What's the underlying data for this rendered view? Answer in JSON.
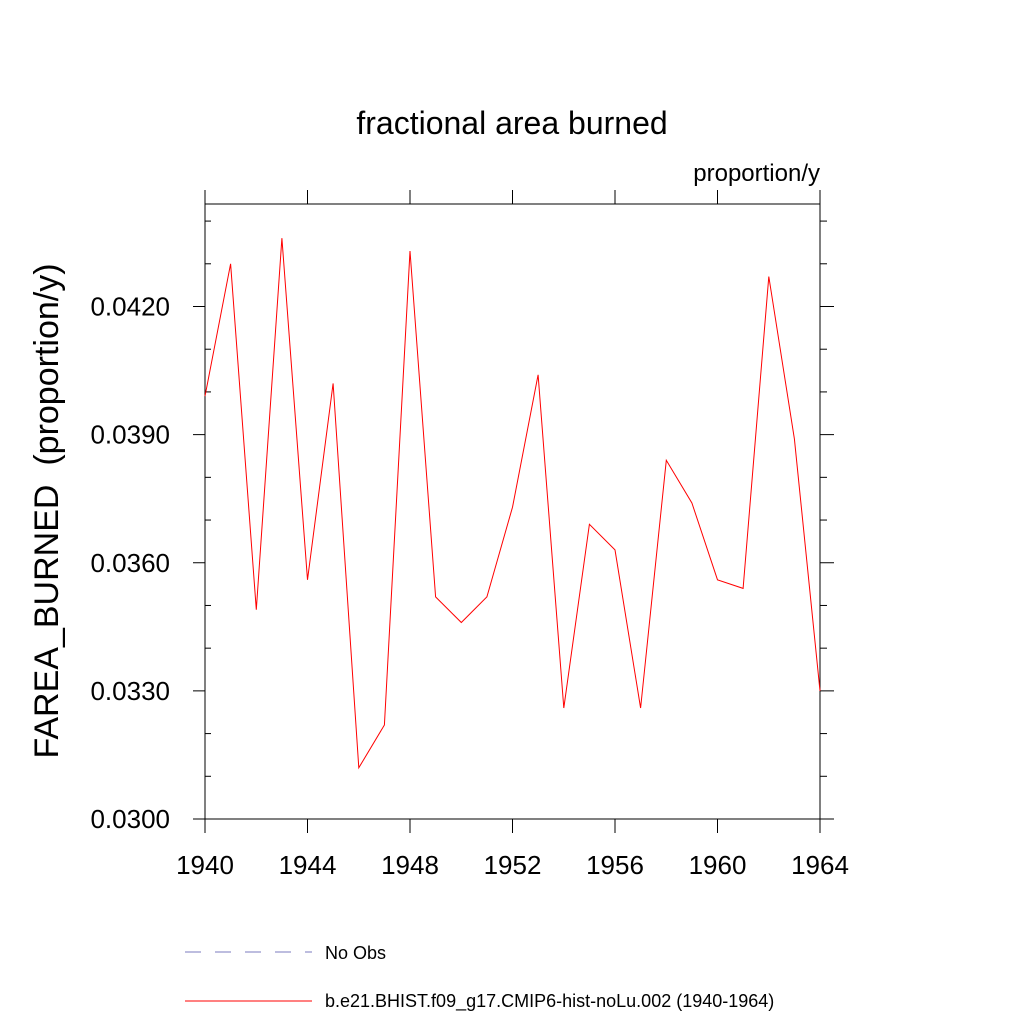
{
  "chart_data": {
    "type": "line",
    "title": "fractional area burned",
    "units_label": "proportion/y",
    "ylabel": "FAREA_BURNED  (proportion/y)",
    "xlabel": "",
    "xlim": [
      1940,
      1964
    ],
    "ylim": [
      0.03,
      0.0444
    ],
    "xticks": [
      1940,
      1944,
      1948,
      1952,
      1956,
      1960,
      1964
    ],
    "xtick_labels": [
      "1940",
      "1944",
      "1948",
      "1952",
      "1956",
      "1960",
      "1964"
    ],
    "yticks": [
      0.03,
      0.033,
      0.036,
      0.039,
      0.042
    ],
    "ytick_labels": [
      "0.0300",
      "0.0330",
      "0.0360",
      "0.0390",
      "0.0420"
    ],
    "grid": false,
    "legend_position": "bottom",
    "series": [
      {
        "name": "b.e21.BHIST.f09_g17.CMIP6-hist-noLu.002 (1940-1964)",
        "color": "#ff0000",
        "dash": "solid",
        "x": [
          1940,
          1941,
          1942,
          1943,
          1944,
          1945,
          1946,
          1947,
          1948,
          1949,
          1950,
          1951,
          1952,
          1953,
          1954,
          1955,
          1956,
          1957,
          1958,
          1959,
          1960,
          1961,
          1962,
          1963,
          1964
        ],
        "y": [
          0.0399,
          0.043,
          0.0349,
          0.0436,
          0.0356,
          0.0402,
          0.0312,
          0.0322,
          0.0433,
          0.0352,
          0.0346,
          0.0352,
          0.0373,
          0.0404,
          0.0326,
          0.0369,
          0.0363,
          0.0326,
          0.0384,
          0.0374,
          0.0356,
          0.0354,
          0.0427,
          0.0389,
          0.033
        ]
      }
    ],
    "legend": [
      {
        "label": "No Obs",
        "color": "#7b7bbf",
        "dash": "dashed"
      },
      {
        "label": "b.e21.BHIST.f09_g17.CMIP6-hist-noLu.002 (1940-1964)",
        "color": "#ff0000",
        "dash": "solid"
      }
    ]
  }
}
